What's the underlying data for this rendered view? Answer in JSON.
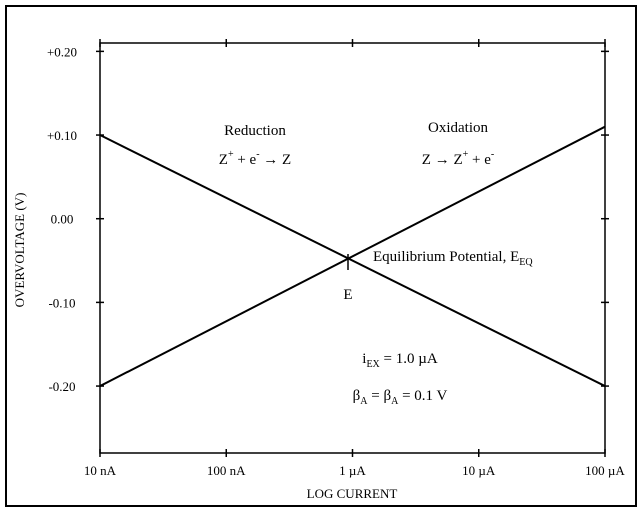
{
  "chart_data": {
    "type": "line",
    "xlabel": "LOG CURRENT",
    "ylabel": "OVERVOLTAGE (V)",
    "xscale": "log",
    "xlim": [
      1e-08,
      0.0001
    ],
    "xticks": [
      {
        "value": 1e-08,
        "label": "10 nA"
      },
      {
        "value": 1e-07,
        "label": "100 nA"
      },
      {
        "value": 1e-06,
        "label": "1 µA"
      },
      {
        "value": 1e-05,
        "label": "10 µA"
      },
      {
        "value": 0.0001,
        "label": "100 µA"
      }
    ],
    "ylim": [
      -0.28,
      0.21
    ],
    "yticks": [
      {
        "value": 0.2,
        "label": "+0.20"
      },
      {
        "value": 0.1,
        "label": "+0.10"
      },
      {
        "value": 0,
        "label": "0.00"
      },
      {
        "value": -0.1,
        "label": "-0.10"
      },
      {
        "value": -0.2,
        "label": "-0.20"
      }
    ],
    "x": [
      1e-08,
      0.0001
    ],
    "series": [
      {
        "color": "#000000",
        "values": [
          0.1,
          -0.2
        ]
      },
      {
        "color": "#000000",
        "values": [
          -0.2,
          0.11
        ]
      }
    ],
    "annotations": [
      {
        "parts": [
          {
            "text": "Reduction"
          }
        ]
      },
      {
        "parts": [
          {
            "text": "Z"
          },
          {
            "sup": "+"
          },
          {
            "text": " + e"
          },
          {
            "sup": "-"
          },
          {
            "text": " → Z"
          }
        ]
      },
      {
        "parts": [
          {
            "text": "Oxidation"
          }
        ]
      },
      {
        "parts": [
          {
            "text": "Z → Z"
          },
          {
            "sup": "+"
          },
          {
            "text": " + e"
          },
          {
            "sup": "-"
          }
        ]
      },
      {
        "parts": [
          {
            "text": "Equilibrium Potential, E"
          },
          {
            "sub": "EQ"
          }
        ]
      },
      {
        "parts": [
          {
            "text": "E"
          }
        ]
      },
      {
        "parts": [
          {
            "text": "i"
          },
          {
            "sub": "EX"
          },
          {
            "text": " = 1.0 µA"
          }
        ]
      },
      {
        "parts": [
          {
            "text": "β"
          },
          {
            "sub": "A"
          },
          {
            "text": " = β"
          },
          {
            "sub": "A"
          },
          {
            "text": "  = 0.1 V"
          }
        ]
      }
    ]
  }
}
